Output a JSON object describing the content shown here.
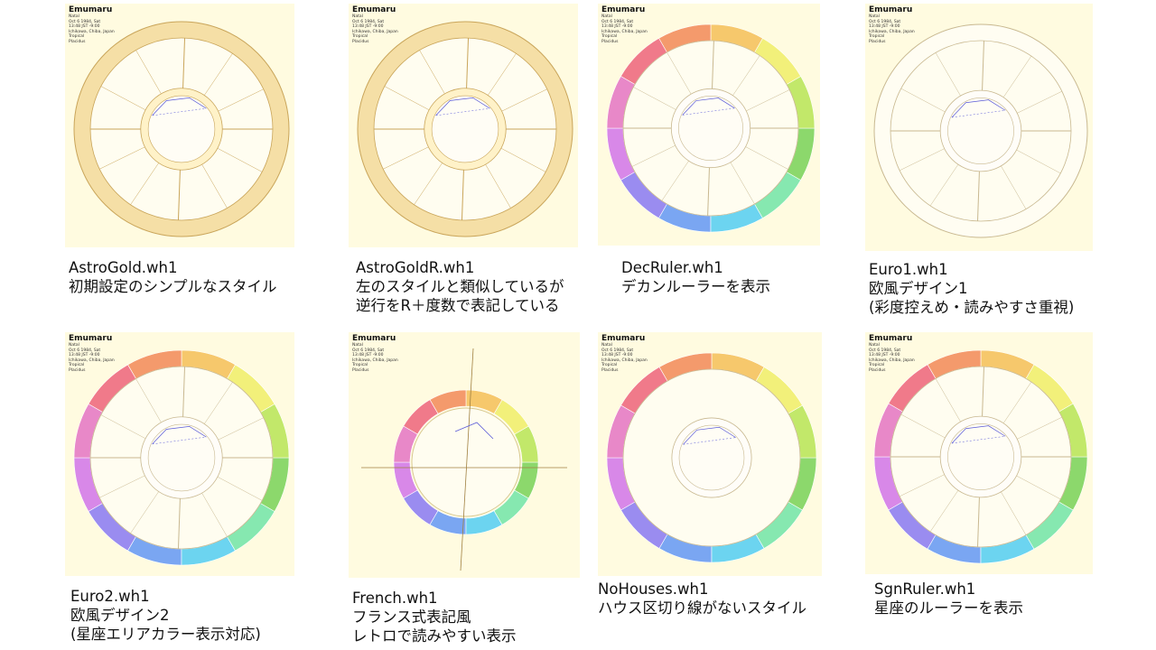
{
  "chart_header": {
    "title": "Emumaru",
    "lines": [
      "Natal",
      "Oct 6 1984, Sat",
      "13:48 JST -9:00",
      "Ichikawa, Chiba, Japan",
      "Tropical",
      "Placidus"
    ]
  },
  "cards": [
    {
      "style": "gold",
      "caption": [
        "AstroGold.wh1",
        "初期設定のシンプルなスタイル"
      ]
    },
    {
      "style": "goldR",
      "caption": [
        "AstroGoldR.wh1",
        "左のスタイルと類似しているが",
        "逆行をR＋度数で表記している"
      ]
    },
    {
      "style": "dec",
      "caption": [
        "DecRuler.wh1",
        "デカンルーラーを表示"
      ]
    },
    {
      "style": "euro1",
      "caption": [
        "Euro1.wh1",
        "欧風デザイン1",
        "(彩度控えめ・読みやすさ重視)"
      ]
    },
    {
      "style": "euro2",
      "caption": [
        "Euro2.wh1",
        "欧風デザイン2",
        "(星座エリアカラー表示対応)"
      ]
    },
    {
      "style": "french",
      "caption": [
        "French.wh1",
        "フランス式表記風",
        "レトロで読みやすい表示"
      ]
    },
    {
      "style": "nohouses",
      "caption": [
        "NoHouses.wh1",
        "ハウス区切り線がないスタイル"
      ]
    },
    {
      "style": "sgn",
      "caption": [
        "SgnRuler.wh1",
        "星座のルーラーを表示"
      ]
    }
  ],
  "colors": {
    "thumb_bg": "#fffbe0",
    "gold_ring": "#f5dfa6",
    "gold_line": "#c9a55a",
    "aspect_blue": "#5a5ad8",
    "rainbow": [
      "#d888e8",
      "#9a8cf0",
      "#7aa6f2",
      "#6cd4f0",
      "#86e8b0",
      "#8cd86c",
      "#c2e86a",
      "#f2f07a",
      "#f6c86c",
      "#f49a6c",
      "#f07a8a",
      "#e888c8"
    ]
  }
}
